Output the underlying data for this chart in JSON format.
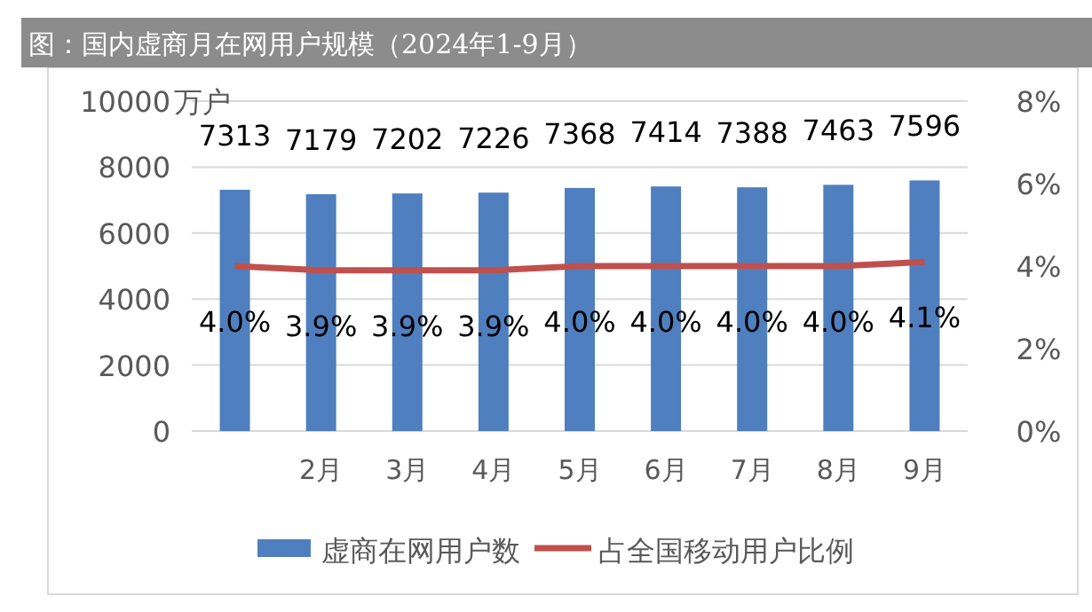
{
  "chart_data": {
    "type": "bar",
    "title": "图：国内虚商月在网用户规模（2024年1-9月）",
    "ylabel": "万户",
    "categories": [
      null,
      "2月",
      "3月",
      "4月",
      "5月",
      "6月",
      "7月",
      "8月",
      "9月"
    ],
    "series": [
      {
        "name": "虚商在网用户数",
        "color": "#4f7fbf",
        "values": [
          7313,
          7179,
          7202,
          7226,
          7368,
          7414,
          7388,
          7463,
          7596
        ],
        "value_labels": [
          "7313",
          "7179",
          "7202",
          "7226",
          "7368",
          "7414",
          "7388",
          "7463",
          "7596"
        ]
      },
      {
        "name": "占全国移动用户比例",
        "type": "line",
        "axis": "y2",
        "color": "#c0504d",
        "values": [
          4.0,
          3.9,
          3.9,
          3.9,
          4.0,
          4.0,
          4.0,
          4.0,
          4.1
        ],
        "value_labels": [
          "4.0%",
          "3.9%",
          "3.9%",
          "3.9%",
          "4.0%",
          "4.0%",
          "4.0%",
          "4.0%",
          "4.1%"
        ]
      }
    ],
    "ylim": [
      0,
      10000
    ],
    "yticks": [
      0,
      2000,
      4000,
      6000,
      8000,
      10000
    ],
    "y2lim": [
      0,
      8
    ],
    "y2ticks": [
      {
        "value": 0,
        "label": "0%"
      },
      {
        "value": 2,
        "label": "2%"
      },
      {
        "value": 4,
        "label": "4%"
      },
      {
        "value": 6,
        "label": "6%"
      },
      {
        "value": 8,
        "label": "8%"
      }
    ],
    "grid": "y",
    "legend": "bottom",
    "marker": "none",
    "line_style": "solid"
  }
}
